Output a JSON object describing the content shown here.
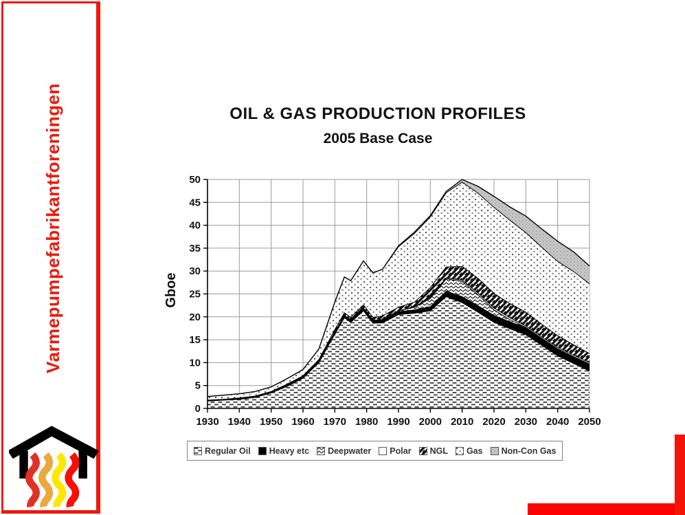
{
  "sidebar": {
    "org_name": "Varmepumpefabrikantforeningen",
    "text_color": "#ee180b",
    "border_color": "#ee180b",
    "logo": {
      "roof_color": "#000000",
      "wave_colors": [
        "#e03124",
        "#eaa83f",
        "#ffe600",
        "#fb0d00"
      ]
    }
  },
  "accent_bars": {
    "horizontal_color": "#ff0000",
    "vertical_color": "#f21507"
  },
  "chart_data": {
    "type": "area",
    "stacked": true,
    "title": "OIL & GAS PRODUCTION PROFILES",
    "subtitle": "2005 Base Case",
    "ylabel": "Gboe",
    "xlabel": "",
    "ylim": [
      0,
      50
    ],
    "yticks": [
      0,
      5,
      10,
      15,
      20,
      25,
      30,
      35,
      40,
      45,
      50
    ],
    "xticks": [
      1930,
      1940,
      1950,
      1960,
      1970,
      1980,
      1990,
      2000,
      2010,
      2020,
      2030,
      2040,
      2050
    ],
    "grid": true,
    "legend_position": "bottom",
    "years": [
      1930,
      1935,
      1940,
      1945,
      1950,
      1955,
      1960,
      1965,
      1970,
      1973,
      1975,
      1979,
      1982,
      1985,
      1990,
      1995,
      2000,
      2005,
      2010,
      2015,
      2020,
      2025,
      2030,
      2035,
      2040,
      2045,
      2050
    ],
    "series": [
      {
        "name": "Regular Oil",
        "pattern": "horizontal-dash",
        "values": [
          1.6,
          1.8,
          2.0,
          2.4,
          3.4,
          4.8,
          6.6,
          10.0,
          16.2,
          19.8,
          18.8,
          21.3,
          18.6,
          18.7,
          20.5,
          20.8,
          21.3,
          24.4,
          23.1,
          21.0,
          18.8,
          17.4,
          16.1,
          13.8,
          11.5,
          9.8,
          8.2
        ]
      },
      {
        "name": "Heavy etc",
        "pattern": "solid-black",
        "values": [
          0.15,
          0.15,
          0.2,
          0.2,
          0.2,
          0.3,
          0.3,
          0.4,
          0.5,
          0.5,
          0.5,
          0.6,
          0.6,
          0.6,
          0.6,
          0.7,
          0.9,
          1.2,
          1.3,
          1.4,
          1.5,
          1.5,
          1.5,
          1.5,
          1.5,
          1.5,
          1.5
        ]
      },
      {
        "name": "Deepwater",
        "pattern": "chevron-hatch",
        "values": [
          0,
          0,
          0,
          0,
          0,
          0,
          0,
          0,
          0,
          0,
          0,
          0,
          0,
          0.1,
          0.2,
          0.6,
          1.8,
          2.7,
          3.3,
          2.4,
          1.2,
          0.5,
          0.1,
          0,
          0,
          0,
          0
        ]
      },
      {
        "name": "Polar",
        "pattern": "plain-white",
        "values": [
          0,
          0,
          0,
          0,
          0,
          0,
          0,
          0,
          0,
          0,
          0,
          0,
          0,
          0,
          0,
          0.1,
          0.2,
          0.2,
          0.3,
          0.4,
          0.4,
          0.4,
          0.3,
          0.3,
          0.3,
          0.3,
          0.3
        ]
      },
      {
        "name": "NGL",
        "pattern": "diagonal-stripe",
        "values": [
          0.05,
          0.05,
          0.1,
          0.1,
          0.1,
          0.2,
          0.2,
          0.3,
          0.5,
          0.6,
          0.6,
          0.7,
          0.7,
          0.8,
          0.8,
          1.0,
          2.2,
          2.4,
          3.0,
          3.2,
          3.2,
          3.1,
          3.0,
          2.8,
          2.6,
          2.3,
          2.0
        ]
      },
      {
        "name": "Gas",
        "pattern": "dotted",
        "values": [
          0.8,
          0.9,
          0.9,
          1.0,
          1.0,
          1.2,
          1.4,
          2.3,
          6.0,
          7.8,
          8.0,
          9.6,
          9.7,
          10.2,
          13.2,
          15.0,
          15.4,
          16.2,
          18.4,
          18.6,
          18.8,
          18.2,
          17.4,
          16.8,
          16.2,
          16.0,
          15.2
        ]
      },
      {
        "name": "Non-Con Gas",
        "pattern": "gray-shade",
        "values": [
          0,
          0,
          0,
          0,
          0,
          0,
          0,
          0,
          0,
          0,
          0,
          0,
          0,
          0,
          0.2,
          0.3,
          0.3,
          0.3,
          0.6,
          1.5,
          2.4,
          2.9,
          3.6,
          4.0,
          4.4,
          4.3,
          3.9
        ]
      }
    ]
  }
}
